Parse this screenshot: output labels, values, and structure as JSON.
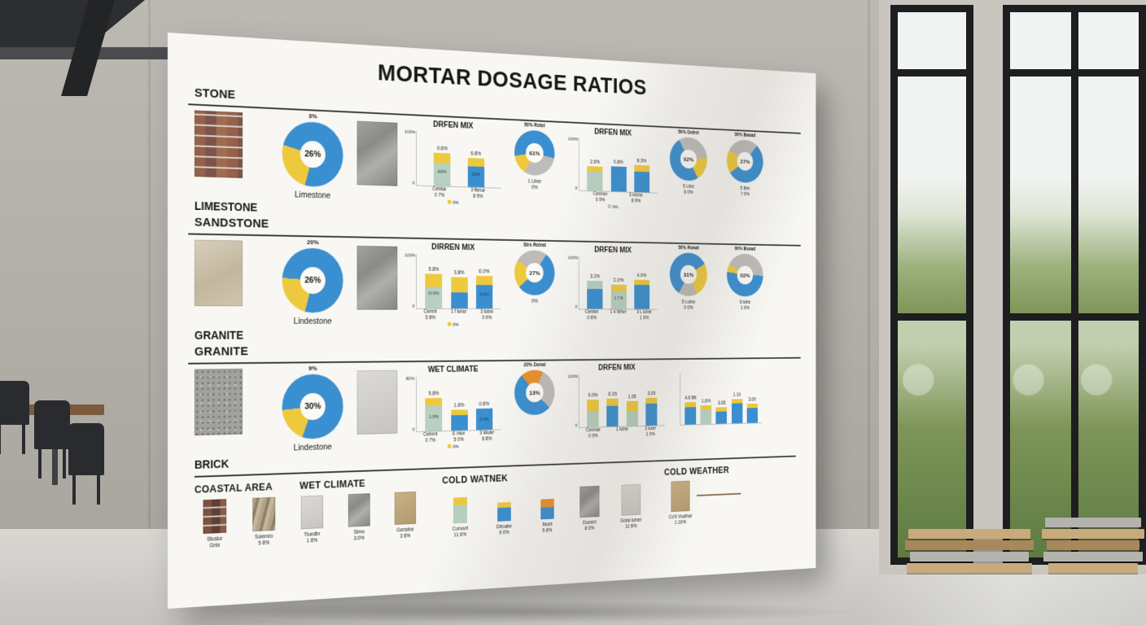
{
  "scene": {
    "colors": {
      "wall": "#bcb9b3",
      "wallDark": "#a9a6a0",
      "floor": "#d9d7d2",
      "floorDark": "#c6c4bf",
      "frame": "#1d1e20",
      "sky": "#f1f3f2",
      "foliage": "#7e9559",
      "foliageDark": "#5d7b42",
      "beam": "#2d2e30",
      "pillar": "#c9c6c0",
      "table": "#7a5b3d",
      "chair": "#2a2b2e",
      "lumberTan": "#c9aa7c",
      "lumberBrown": "#a8875b",
      "lumberGray": "#b4b2ad",
      "board": "#f8f7f4",
      "ink": "#171717",
      "line": "#3a3a3a"
    }
  },
  "board": {
    "title": "MORTAR DOSAGE RATIOS",
    "palette": {
      "blue": "#3a8fd0",
      "yellow": "#eec93e",
      "teal": "#b7d0bf",
      "gray": "#bdbcb8",
      "orange": "#e8912d"
    },
    "rows": [
      {
        "heading": "STONE",
        "subheading": "LIMESTONE",
        "swatch": "brick",
        "cells": [
          {
            "t": "donut",
            "size": "lg",
            "chart": 0
          },
          {
            "t": "swatch",
            "variant": "slate"
          },
          {
            "t": "bars",
            "chart": 1
          },
          {
            "t": "donut",
            "size": "sm",
            "chart": 2
          },
          {
            "t": "bars",
            "chart": 3
          },
          {
            "t": "donut",
            "size": "sm",
            "chart": 4
          },
          {
            "t": "donut",
            "size": "sm",
            "chart": 5
          }
        ]
      },
      {
        "heading": "SANDSTONE",
        "subheading": "GRANITE",
        "swatch": "sand",
        "cells": [
          {
            "t": "donut",
            "size": "lg",
            "chart": 6
          },
          {
            "t": "swatch",
            "variant": "slate"
          },
          {
            "t": "bars",
            "chart": 7
          },
          {
            "t": "donut",
            "size": "sm",
            "chart": 8
          },
          {
            "t": "bars",
            "chart": 9
          },
          {
            "t": "donut",
            "size": "sm",
            "chart": 10
          },
          {
            "t": "donut",
            "size": "sm",
            "chart": 11
          }
        ]
      },
      {
        "heading": "GRANITE",
        "subheading": "BRICK",
        "swatch": "granite",
        "cells": [
          {
            "t": "donut",
            "size": "lg",
            "chart": 12
          },
          {
            "t": "swatch",
            "variant": "light"
          },
          {
            "t": "bars",
            "chart": 13
          },
          {
            "t": "donut",
            "size": "sm",
            "chart": 14
          },
          {
            "t": "bars",
            "wide": true,
            "chart": 15
          },
          {
            "t": "bars",
            "wide": true,
            "chart": 16
          }
        ]
      }
    ],
    "footer": {
      "groups": [
        {
          "headings": [
            "COASTAL AREA",
            "WET CLIMATE"
          ],
          "items": [
            {
              "t": "swatchcap",
              "variant": "brickdark",
              "cap": "Stuslor\nGnis"
            },
            {
              "t": "swatchcap",
              "variant": "striped",
              "cap": "Soieniro\n5 8%"
            },
            {
              "t": "swatchcap",
              "variant": "light",
              "cap": "Tiuedbr\n1 8%"
            },
            {
              "t": "swatchcap",
              "variant": "slate",
              "cap": "Simo\n3:0%"
            },
            {
              "t": "swatchcap",
              "variant": "tan",
              "cap": "Gonstior\n3 8%"
            }
          ]
        },
        {
          "headings": [
            "COLD WATNEK"
          ],
          "items": [
            {
              "t": "minibar",
              "cap": "Cunvurt\n11 6%",
              "stack": [
                [
                  "teal",
                  24
                ],
                [
                  "yellow",
                  10
                ]
              ]
            },
            {
              "t": "minibar",
              "cap": "Diroake\n9 0%",
              "stack": [
                [
                  "blue",
                  18
                ],
                [
                  "yellow",
                  7
                ]
              ]
            },
            {
              "t": "minibar",
              "cap": "Munt\n5 8%",
              "stack": [
                [
                  "blue",
                  16
                ],
                [
                  "orange",
                  11
                ]
              ]
            },
            {
              "t": "swatchcap",
              "variant": "slate",
              "cap": "Duosnt\n8 0%"
            },
            {
              "t": "swatchcap",
              "variant": "light",
              "cap": "Gotal lutner\n11 6%"
            }
          ]
        },
        {
          "headings": [
            "COLD WEATHER"
          ],
          "items": [
            {
              "t": "swatchcap",
              "variant": "tan",
              "cap": "Co'd Vuathar\n1:10%",
              "line": true
            }
          ]
        }
      ]
    }
  },
  "chart_data": [
    {
      "type": "pie",
      "top_label": "3%",
      "center_label": "26%",
      "caption": "Limestone",
      "from": 195,
      "segments": [
        {
          "color": "yellow",
          "value": 25
        },
        {
          "color": "blue",
          "value": 75
        }
      ]
    },
    {
      "type": "bar",
      "title": "DRFEN MIX",
      "yticks": [
        "100%",
        "0"
      ],
      "bars": [
        {
          "label": "0.6%",
          "inner": "E0%",
          "stack": [
            [
              "teal",
              42
            ],
            [
              "yellow",
              18
            ]
          ]
        },
        {
          "label": "6.8%",
          "inner": "C0%",
          "stack": [
            [
              "blue",
              38
            ],
            [
              "yellow",
              16
            ]
          ]
        }
      ],
      "xlabels": [
        "Celntar\n0 7%",
        "3 flenur\n8 9%"
      ],
      "legend": [
        {
          "color": "yellow",
          "label": "0%"
        }
      ]
    },
    {
      "type": "pie",
      "top_label": "50% Rotel",
      "center_label": "61%",
      "caption": "1 Litrer\n0%",
      "from": 210,
      "segments": [
        {
          "color": "yellow",
          "value": 14
        },
        {
          "color": "blue",
          "value": 56
        },
        {
          "color": "gray",
          "value": 30
        }
      ]
    },
    {
      "type": "bar",
      "title": "DRFEN MIX",
      "yticks": [
        "100%",
        "0"
      ],
      "bars": [
        {
          "label": "2.6%",
          "stack": [
            [
              "teal",
              36
            ],
            [
              "yellow",
              10
            ]
          ]
        },
        {
          "label": "0.8%",
          "stack": [
            [
              "blue",
              48
            ]
          ]
        },
        {
          "label": "8.3%",
          "stack": [
            [
              "blue",
              40
            ],
            [
              "yellow",
              12
            ]
          ]
        }
      ],
      "xlabels": [
        "Cemner\n0 9%",
        "3 ivicne\n8 9%"
      ],
      "legend": [
        {
          "color": "teal",
          "label": "0%"
        }
      ]
    },
    {
      "type": "pie",
      "top_label": "50% Dotrel",
      "center_label": "02%",
      "caption": "5 Litre\n8 0%",
      "from": 330,
      "segments": [
        {
          "color": "gray",
          "value": 32
        },
        {
          "color": "yellow",
          "value": 18
        },
        {
          "color": "blue",
          "value": 50
        }
      ]
    },
    {
      "type": "pie",
      "top_label": "90% Baoad",
      "center_label": "27%",
      "caption": "5 litre\n7 0%",
      "from": 300,
      "segments": [
        {
          "color": "gray",
          "value": 28
        },
        {
          "color": "blue",
          "value": 54
        },
        {
          "color": "yellow",
          "value": 18
        }
      ]
    },
    {
      "type": "pie",
      "top_label": "20%",
      "center_label": "26%",
      "caption": "Lindestone",
      "from": 195,
      "segments": [
        {
          "color": "yellow",
          "value": 22
        },
        {
          "color": "blue",
          "value": 78
        }
      ]
    },
    {
      "type": "bar",
      "title": "DIRREN MIX",
      "yticks": [
        "100%",
        "0"
      ],
      "bars": [
        {
          "label": "5.8%",
          "inner": "D.0%",
          "stack": [
            [
              "teal",
              40
            ],
            [
              "yellow",
              24
            ]
          ]
        },
        {
          "label": "3.8%",
          "stack": [
            [
              "blue",
              30
            ],
            [
              "yellow",
              28
            ]
          ]
        },
        {
          "label": "E.0%",
          "inner": "0.0%",
          "stack": [
            [
              "blue",
              44
            ],
            [
              "yellow",
              16
            ]
          ]
        }
      ],
      "xlabels": [
        "Cemnt\n5 8%",
        "1 f lunur",
        "3 lutne\n0 0%"
      ],
      "legend": [
        {
          "color": "yellow",
          "label": "0%"
        }
      ]
    },
    {
      "type": "pie",
      "top_label": "Strs Rotrat",
      "center_label": "27%",
      "caption": "0%",
      "from": 230,
      "segments": [
        {
          "color": "yellow",
          "value": 20
        },
        {
          "color": "gray",
          "value": 26
        },
        {
          "color": "blue",
          "value": 54
        }
      ]
    },
    {
      "type": "bar",
      "title": "DRFEN MIX",
      "yticks": [
        "100%",
        "0"
      ],
      "bars": [
        {
          "label": "3.1%",
          "stack": [
            [
              "blue",
              38
            ],
            [
              "teal",
              16
            ]
          ]
        },
        {
          "label": "C.0%",
          "inner": "1.7-8",
          "stack": [
            [
              "teal",
              34
            ],
            [
              "yellow",
              12
            ]
          ]
        },
        {
          "label": "4.0%",
          "stack": [
            [
              "blue",
              46
            ],
            [
              "yellow",
              10
            ]
          ]
        }
      ],
      "xlabels": [
        "Cemter\n0 6%",
        "1 4 Wher",
        "3 L lutne\n1 0%"
      ]
    },
    {
      "type": "pie",
      "top_label": "50% Ronat",
      "center_label": "31%",
      "caption": "5 Lutne\n0 0%",
      "from": 60,
      "segments": [
        {
          "color": "yellow",
          "value": 26
        },
        {
          "color": "gray",
          "value": 16
        },
        {
          "color": "blue",
          "value": 58
        }
      ]
    },
    {
      "type": "pie",
      "top_label": "90% Bsoad",
      "center_label": "02%",
      "caption": "5 lutre\n1 0%",
      "from": 300,
      "segments": [
        {
          "color": "gray",
          "value": 42
        },
        {
          "color": "blue",
          "value": 52
        },
        {
          "color": "yellow",
          "value": 6
        }
      ]
    },
    {
      "type": "pie",
      "top_label": "9%",
      "center_label": "30%",
      "caption": "Lindestone",
      "from": 200,
      "segments": [
        {
          "color": "yellow",
          "value": 18
        },
        {
          "color": "blue",
          "value": 82
        }
      ]
    },
    {
      "type": "bar",
      "title": "WET CLIMATE",
      "yticks": [
        "80%",
        "0"
      ],
      "bars": [
        {
          "label": "5.8%",
          "inner": "1.0%",
          "stack": [
            [
              "teal",
              46
            ],
            [
              "yellow",
              14
            ]
          ]
        },
        {
          "label": "1.6%",
          "stack": [
            [
              "blue",
              28
            ],
            [
              "yellow",
              10
            ]
          ]
        },
        {
          "label": "0.6%",
          "inner": "0 0%",
          "stack": [
            [
              "blue",
              40
            ]
          ]
        }
      ],
      "xlabels": [
        "Celrent\n0 7%",
        "E inlor\n5 0%",
        "3 Wuler\n8 8%"
      ],
      "legend": [
        {
          "color": "yellow",
          "label": "0%"
        }
      ]
    },
    {
      "type": "pie",
      "top_label": "20% Donal",
      "center_label": "13%",
      "caption": "",
      "from": 320,
      "segments": [
        {
          "color": "orange",
          "value": 18
        },
        {
          "color": "gray",
          "value": 30
        },
        {
          "color": "blue",
          "value": 52
        }
      ]
    },
    {
      "type": "bar",
      "title": "DRFEN MIX",
      "yticks": [
        "100%",
        "0"
      ],
      "bars": [
        {
          "label": "0.0%",
          "stack": [
            [
              "teal",
              30
            ],
            [
              "yellow",
              22
            ]
          ]
        },
        {
          "label": "E.05",
          "stack": [
            [
              "blue",
              40
            ],
            [
              "yellow",
              14
            ]
          ]
        },
        {
          "label": "1.05",
          "stack": [
            [
              "teal",
              28
            ],
            [
              "yellow",
              20
            ]
          ]
        },
        {
          "label": "3.05",
          "stack": [
            [
              "blue",
              42
            ],
            [
              "yellow",
              12
            ]
          ]
        }
      ],
      "xlabels": [
        "Cemnar\n0 0%",
        "1 lutne",
        "3 lurer\n1 0%"
      ]
    },
    {
      "type": "bar",
      "title": "",
      "yticks": [],
      "bars": [
        {
          "label": "4.6 Bit",
          "stack": [
            [
              "blue",
              34
            ],
            [
              "yellow",
              9
            ]
          ]
        },
        {
          "label": "1.6%",
          "stack": [
            [
              "teal",
              28
            ],
            [
              "yellow",
              8
            ]
          ]
        },
        {
          "label": "3.05",
          "stack": [
            [
              "blue",
              24
            ],
            [
              "yellow",
              8
            ]
          ]
        },
        {
          "label": "1.10",
          "stack": [
            [
              "blue",
              40
            ],
            [
              "yellow",
              8
            ]
          ]
        },
        {
          "label": "3.00",
          "stack": [
            [
              "blue",
              30
            ],
            [
              "yellow",
              8
            ]
          ]
        }
      ],
      "xlabels": []
    }
  ]
}
